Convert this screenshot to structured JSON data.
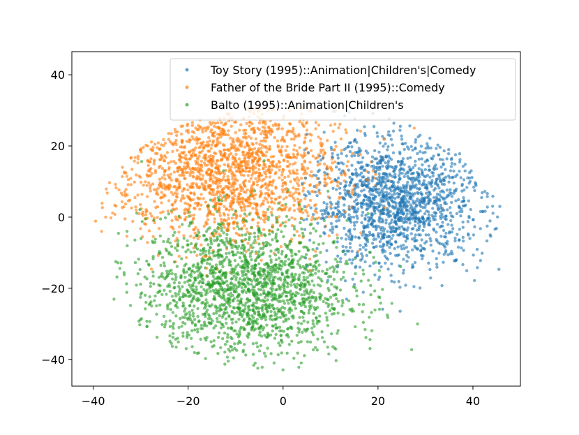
{
  "chart_data": {
    "type": "scatter",
    "title": "",
    "xlabel": "",
    "ylabel": "",
    "xlim": [
      -44.5,
      50
    ],
    "ylim": [
      -47.5,
      46.5
    ],
    "x_ticks": [
      -40,
      -20,
      0,
      20,
      40
    ],
    "y_ticks": [
      -40,
      -20,
      0,
      20,
      40
    ],
    "x_tick_labels": [
      "−40",
      "−20",
      "0",
      "20",
      "40"
    ],
    "y_tick_labels": [
      "−40",
      "−20",
      "0",
      "20",
      "40"
    ],
    "grid": false,
    "legend_position": "top-right",
    "series": [
      {
        "name": "Toy Story (1995)::Animation|Children's|Comedy",
        "color": "#1f77b4",
        "cluster": {
          "center": [
            24,
            4
          ],
          "spread": [
            9,
            9
          ],
          "count": 1500,
          "x_range": [
            4,
            46
          ],
          "y_range": [
            -30,
            30
          ]
        }
      },
      {
        "name": "Father of the Bride Part II (1995)::Comedy",
        "color": "#ff7f0e",
        "cluster": {
          "center": [
            -12,
            13
          ],
          "spread": [
            12,
            10
          ],
          "count": 1700,
          "x_range": [
            -40,
            46
          ],
          "y_range": [
            -44,
            31
          ]
        }
      },
      {
        "name": "Balto (1995)::Animation|Children's",
        "color": "#2ca02c",
        "cluster": {
          "center": [
            -8,
            -20
          ],
          "spread": [
            11,
            10
          ],
          "count": 1800,
          "x_range": [
            -40,
            46
          ],
          "y_range": [
            -43,
            25
          ]
        }
      }
    ]
  }
}
